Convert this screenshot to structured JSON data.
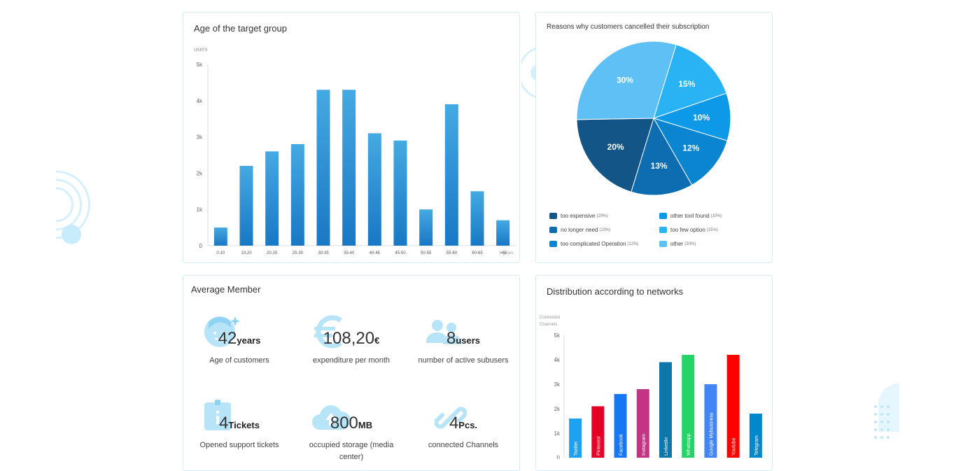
{
  "age_card": {
    "title": "Age of the target group",
    "y_unit": "users",
    "x_unit": "years"
  },
  "reasons_card": {
    "title": "Reasons why customers cancelled their subscription"
  },
  "member_card": {
    "title": "Average Member",
    "stats": [
      {
        "value": "42",
        "unit": "years",
        "desc": "Age of customers",
        "icon": "face-icon"
      },
      {
        "value": "108,20",
        "unit": "€",
        "desc": "expenditure per month",
        "icon": "euro-icon"
      },
      {
        "value": "8",
        "unit": "users",
        "desc": "number of active subusers",
        "icon": "users-icon"
      },
      {
        "value": "4",
        "unit": "Tickets",
        "desc": "Opened support tickets",
        "icon": "ticket-icon"
      },
      {
        "value": "800",
        "unit": "MB",
        "desc": "occupied storage (media center)",
        "icon": "cloud-upload-icon"
      },
      {
        "value": "4",
        "unit": "Pcs.",
        "desc": "connected Channels",
        "icon": "link-icon"
      }
    ]
  },
  "network_card": {
    "title": "Distribution according to networks",
    "y_unit_line1": "Connected",
    "y_unit_line2": "Channels"
  },
  "colors": {
    "card_border": "#d4eef8",
    "bar_blue": "#1f86cf",
    "deco_light": "#b8e4f8"
  },
  "chart_data": [
    {
      "type": "bar",
      "title": "Age of the target group",
      "ylabel": "users",
      "xlabel": "years",
      "categories": [
        "0-10",
        "10-20",
        "20-25",
        "25-30",
        "30-35",
        "35-40",
        "40-45",
        "45-50",
        "50-55",
        "55-60",
        "60-65",
        ">65"
      ],
      "values": [
        500,
        2200,
        2600,
        2800,
        4300,
        4300,
        3100,
        2900,
        1000,
        3900,
        1500,
        700
      ],
      "ylim": [
        0,
        5000
      ],
      "yticks": [
        "0",
        "1k",
        "2k",
        "3k",
        "4k",
        "5k"
      ],
      "grid": false
    },
    {
      "type": "pie",
      "title": "Reasons why customers cancelled their subscription",
      "legend_position": "bottom",
      "slices": [
        {
          "label": "15%",
          "value": 15,
          "color": "#29b3f5"
        },
        {
          "label": "10%",
          "value": 10,
          "color": "#0c9ae8"
        },
        {
          "label": "12%",
          "value": 12,
          "color": "#0a86d0"
        },
        {
          "label": "13%",
          "value": 13,
          "color": "#0e6cb0"
        },
        {
          "label": "20%",
          "value": 20,
          "color": "#135586"
        },
        {
          "label": "30%",
          "value": 30,
          "color": "#5ec0f5"
        }
      ],
      "legend": [
        {
          "name": "too expensive",
          "pct": "(20%)",
          "color": "#135586"
        },
        {
          "name": "no longer need",
          "pct": "(13%)",
          "color": "#0e6cb0"
        },
        {
          "name": "too complicated Operation",
          "pct": "(12%)",
          "color": "#0a86d0"
        },
        {
          "name": "other tool found",
          "pct": "(10%)",
          "color": "#0c9ae8"
        },
        {
          "name": "too few option",
          "pct": "(15%)",
          "color": "#29b3f5"
        },
        {
          "name": "other",
          "pct": "(30%)",
          "color": "#5ec0f5"
        }
      ]
    },
    {
      "type": "bar",
      "title": "Distribution according to networks",
      "ylabel": "Connected Channels",
      "categories": [
        "Twitter",
        "Pinterest",
        "Facebook",
        "Instagram",
        "LinkedIn",
        "Whatsapp",
        "Google Mybusiness",
        "Youtube",
        "Telegram"
      ],
      "values": [
        1600,
        2100,
        2600,
        2800,
        3900,
        4200,
        3000,
        4200,
        1800
      ],
      "colors": [
        "#1da1f2",
        "#e60023",
        "#1877f2",
        "#c13584",
        "#0e76a8",
        "#25d366",
        "#4285f4",
        "#ff0000",
        "#0088cc"
      ],
      "ylim": [
        0,
        5000
      ],
      "yticks": [
        "0",
        "1k",
        "2k",
        "3k",
        "4k",
        "5k"
      ],
      "grid": false
    }
  ]
}
